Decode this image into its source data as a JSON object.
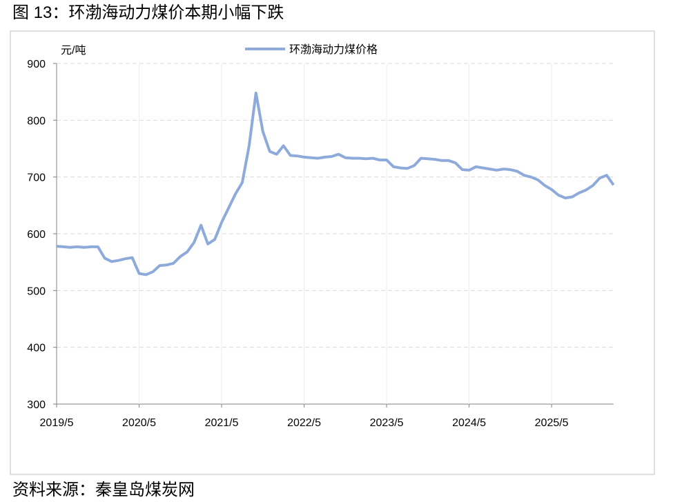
{
  "chart_data": {
    "type": "line",
    "title": "图 13：环渤海动力煤价本期小幅下跌",
    "y_label": "元/吨",
    "source": "资料来源：秦皇岛煤炭网",
    "x": [
      "2019/5",
      "2019/6",
      "2019/7",
      "2019/8",
      "2019/9",
      "2019/10",
      "2019/11",
      "2019/12",
      "2020/1",
      "2020/2",
      "2020/3",
      "2020/4",
      "2020/5",
      "2020/6",
      "2020/7",
      "2020/8",
      "2020/9",
      "2020/10",
      "2020/11",
      "2020/12",
      "2021/1",
      "2021/2",
      "2021/3",
      "2021/4",
      "2021/5",
      "2021/6",
      "2021/7",
      "2021/8",
      "2021/9",
      "2021/10",
      "2021/11",
      "2021/12",
      "2022/1",
      "2022/2",
      "2022/3",
      "2022/4",
      "2022/5",
      "2022/6",
      "2022/7",
      "2022/8",
      "2022/9",
      "2022/10",
      "2022/11",
      "2022/12",
      "2023/1",
      "2023/2",
      "2023/3",
      "2023/4",
      "2023/5",
      "2023/6",
      "2023/7",
      "2023/8",
      "2023/9",
      "2023/10",
      "2023/11",
      "2023/12",
      "2024/1",
      "2024/2",
      "2024/3",
      "2024/4",
      "2024/5",
      "2024/6",
      "2024/7",
      "2024/8",
      "2024/9",
      "2024/10",
      "2024/11",
      "2024/12",
      "2025/1",
      "2025/2",
      "2025/3",
      "2025/4",
      "2025/5",
      "2025/6",
      "2025/7",
      "2025/8",
      "2025/9",
      "2025/10",
      "2025/11",
      "2025/12",
      "2026/1",
      "2026/2"
    ],
    "series": [
      {
        "name": "环渤海动力煤价格",
        "color": "#8eaadb",
        "values": [
          578,
          577,
          576,
          577,
          576,
          577,
          577,
          557,
          551,
          553,
          556,
          558,
          530,
          528,
          533,
          544,
          545,
          548,
          560,
          568,
          585,
          615,
          582,
          590,
          620,
          645,
          670,
          690,
          755,
          848,
          780,
          745,
          740,
          755,
          738,
          737,
          735,
          734,
          733,
          735,
          736,
          740,
          734,
          733,
          733,
          732,
          733,
          730,
          730,
          718,
          716,
          715,
          720,
          733,
          732,
          731,
          729,
          729,
          725,
          713,
          712,
          718,
          716,
          714,
          712,
          714,
          713,
          710,
          703,
          700,
          695,
          685,
          678,
          668,
          663,
          665,
          672,
          677,
          685,
          698,
          703,
          686
        ]
      }
    ],
    "xticks": [
      "2019/5",
      "2020/5",
      "2021/5",
      "2022/5",
      "2023/5",
      "2024/5",
      "2025/5"
    ],
    "ylim": [
      300,
      900
    ],
    "yticks": [
      300,
      400,
      500,
      600,
      700,
      800,
      900
    ],
    "grid": true,
    "legend": "top"
  }
}
